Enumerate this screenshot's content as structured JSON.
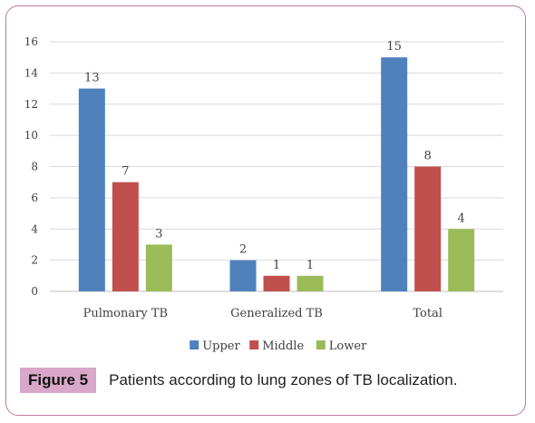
{
  "chart_data": {
    "type": "bar",
    "categories": [
      "Pulmonary TB",
      "Generalized TB",
      "Total"
    ],
    "series": [
      {
        "name": "Upper",
        "values": [
          13,
          2,
          15
        ],
        "color": "#4f81bd"
      },
      {
        "name": "Middle",
        "values": [
          7,
          1,
          8
        ],
        "color": "#c0504d"
      },
      {
        "name": "Lower",
        "values": [
          3,
          1,
          4
        ],
        "color": "#9bbb59"
      }
    ],
    "ylim": [
      0,
      16
    ],
    "yticks": [
      0,
      2,
      4,
      6,
      8,
      10,
      12,
      14,
      16
    ],
    "grid": true,
    "legend": "bottom"
  },
  "caption": {
    "label": "Figure 5",
    "text": "Patients according to lung zones of TB localization."
  }
}
